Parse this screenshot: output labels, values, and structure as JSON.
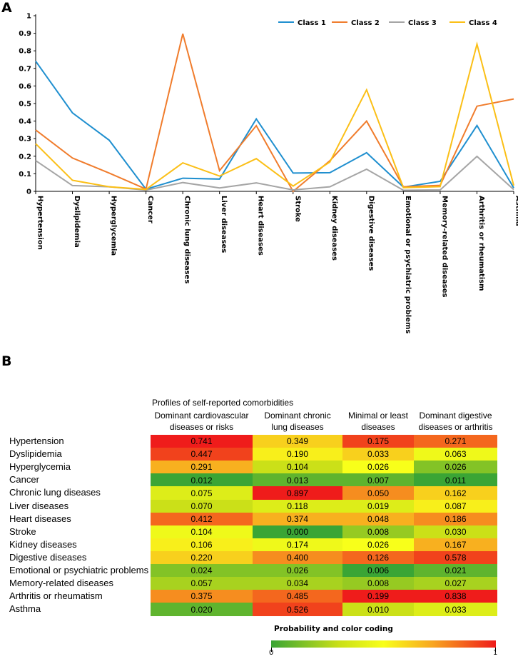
{
  "panel_a_label": "A",
  "panel_b_label": "B",
  "chart_data": [
    {
      "type": "line",
      "title": "",
      "xlabel": "",
      "ylabel": "",
      "ylim": [
        0,
        1
      ],
      "yticks": [
        "0",
        "0.1",
        "0.2",
        "0.3",
        "0.4",
        "0.5",
        "0.6",
        "0.7",
        "0.8",
        "0.9",
        "1"
      ],
      "categories": [
        "Hypertension",
        "Dyslipidemia",
        "Hyperglycemia",
        "Cancer",
        "Chronic lung diseases",
        "Liver diseases",
        "Heart diseases",
        "Stroke",
        "Kidney diseases",
        "Digestive diseases",
        "Emotional or psychiatric problems",
        "Memory-related diseases",
        "Arthritis or rheumatism",
        "Asthma"
      ],
      "legend_position": "top-right",
      "series": [
        {
          "name": "Class 1",
          "color": "#1f8fcf",
          "values": [
            0.741,
            0.447,
            0.291,
            0.012,
            0.075,
            0.07,
            0.412,
            0.104,
            0.106,
            0.22,
            0.024,
            0.057,
            0.375,
            0.02
          ]
        },
        {
          "name": "Class 2",
          "color": "#f07c2c",
          "values": [
            0.349,
            0.19,
            0.104,
            0.013,
            0.897,
            0.118,
            0.374,
            0.0,
            0.174,
            0.4,
            0.026,
            0.034,
            0.485,
            0.526
          ]
        },
        {
          "name": "Class 3",
          "color": "#a5a5a5",
          "values": [
            0.175,
            0.033,
            0.026,
            0.007,
            0.05,
            0.019,
            0.048,
            0.008,
            0.026,
            0.126,
            0.006,
            0.008,
            0.199,
            0.01
          ]
        },
        {
          "name": "Class 4",
          "color": "#fbbf16",
          "values": [
            0.271,
            0.063,
            0.026,
            0.011,
            0.162,
            0.087,
            0.186,
            0.03,
            0.167,
            0.578,
            0.021,
            0.027,
            0.838,
            0.033
          ]
        }
      ]
    },
    {
      "type": "heatmap",
      "title": "Profiles of self-reported comorbidities",
      "columns": [
        "Dominant cardiovascular diseases or risks",
        "Dominant chronic lung diseases",
        "Minimal or least diseases",
        "Dominant digestive diseases or arthritis"
      ],
      "column_lines": [
        [
          "Dominant cardiovascular",
          "diseases or risks"
        ],
        [
          "Dominant chronic",
          "lung diseases"
        ],
        [
          "Minimal or least",
          "diseases"
        ],
        [
          "Dominant digestive",
          "diseases or arthritis"
        ]
      ],
      "rows": [
        "Hypertension",
        "Dyslipidemia",
        "Hyperglycemia",
        "Cancer",
        "Chronic lung diseases",
        "Liver diseases",
        "Heart diseases",
        "Stroke",
        "Kidney diseases",
        "Digestive diseases",
        "Emotional or psychiatric problems",
        "Memory-related diseases",
        "Arthritis or rheumatism",
        "Asthma"
      ],
      "cells": [
        [
          "0.741",
          "0.349",
          "0.175",
          "0.271"
        ],
        [
          "0.447",
          "0.190",
          "0.033",
          "0.063"
        ],
        [
          "0.291",
          "0.104",
          "0.026",
          "0.026"
        ],
        [
          "0.012",
          "0.013",
          "0.007",
          "0.011"
        ],
        [
          "0.075",
          "0.897",
          "0.050",
          "0.162"
        ],
        [
          "0.070",
          "0.118",
          "0.019",
          "0.087"
        ],
        [
          "0.412",
          "0.374",
          "0.048",
          "0.186"
        ],
        [
          "0.104",
          "0.000",
          "0.008",
          "0.030"
        ],
        [
          "0.106",
          "0.174",
          "0.026",
          "0.167"
        ],
        [
          "0.220",
          "0.400",
          "0.126",
          "0.578"
        ],
        [
          "0.024",
          "0.026",
          "0.006",
          "0.021"
        ],
        [
          "0.057",
          "0.034",
          "0.008",
          "0.027"
        ],
        [
          "0.375",
          "0.485",
          "0.199",
          "0.838"
        ],
        [
          "0.020",
          "0.526",
          "0.010",
          "0.033"
        ]
      ],
      "colorbar": {
        "title": "Probability and color coding",
        "min_label": "0",
        "max_label": "1",
        "min": 0,
        "max": 1
      }
    }
  ]
}
